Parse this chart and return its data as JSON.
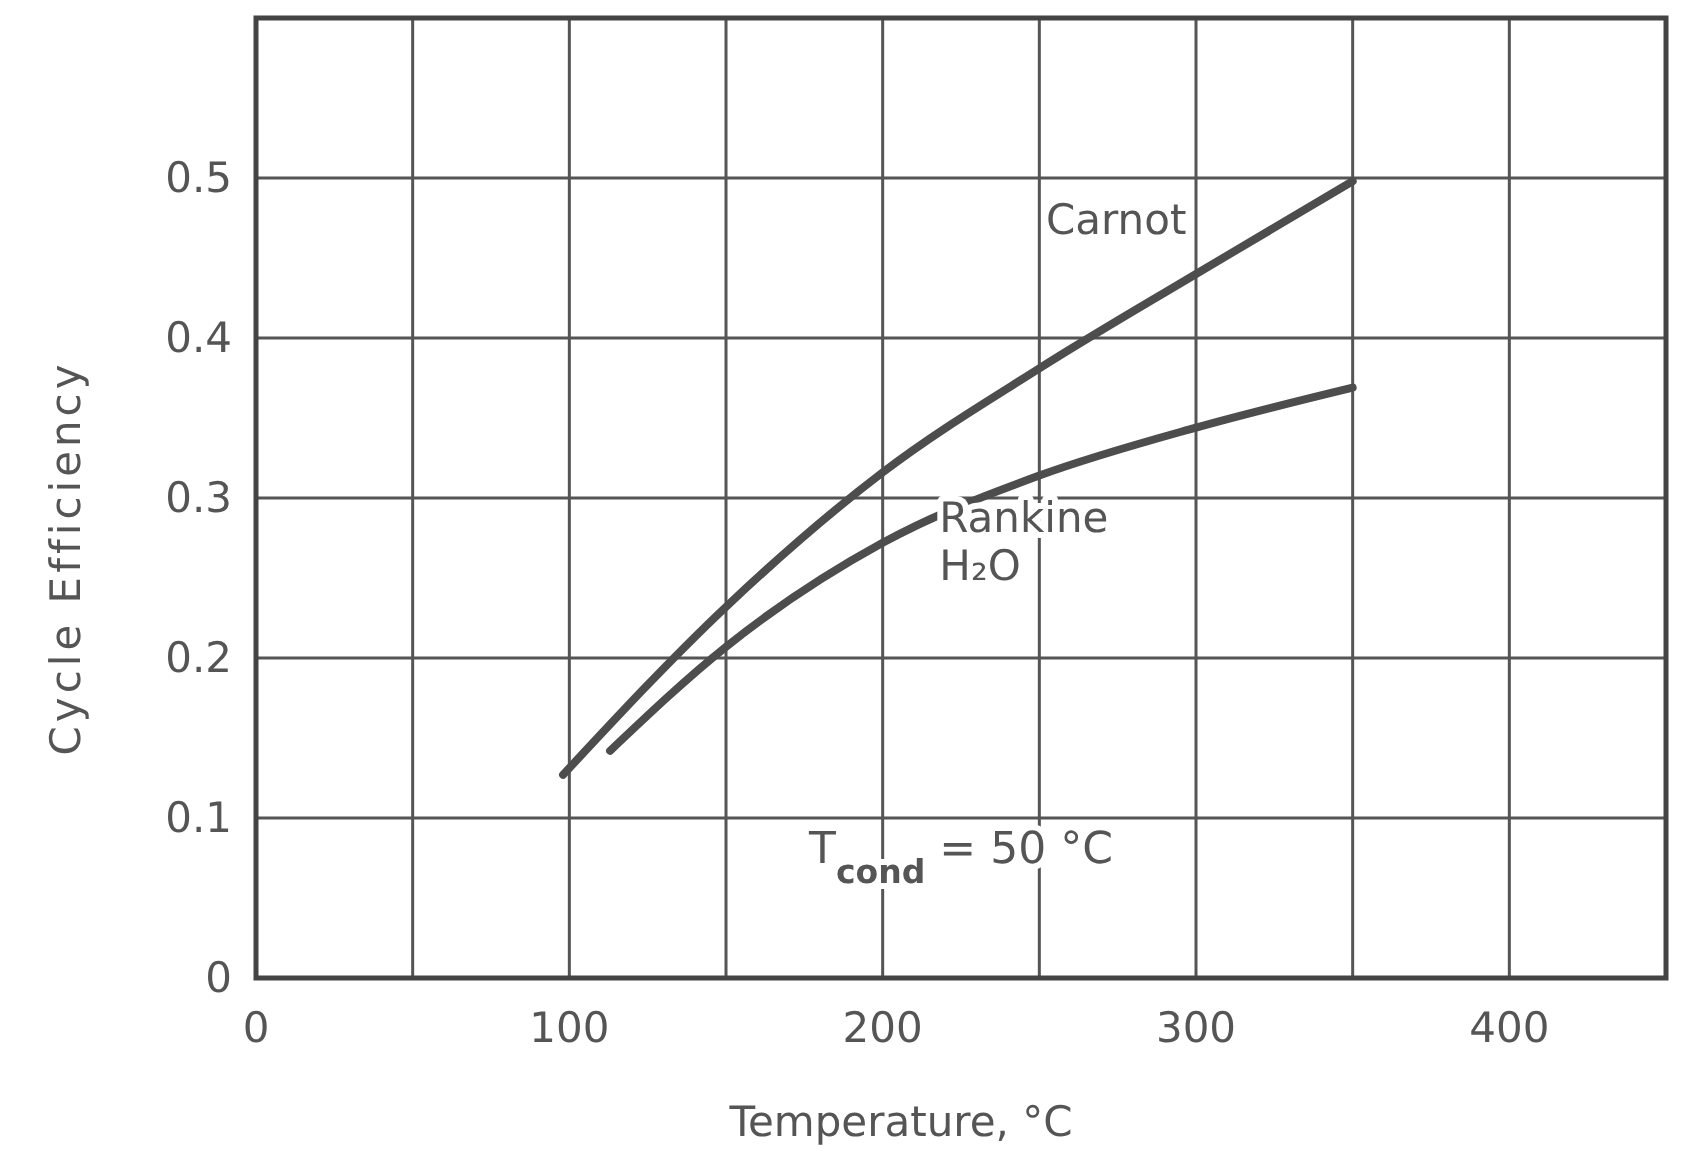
{
  "chart_data": {
    "type": "line",
    "xlabel": "Temperature, °C",
    "ylabel": "Cycle Efficiency",
    "xlim": [
      0,
      450
    ],
    "ylim": [
      0,
      0.6
    ],
    "xticks": [
      0,
      {
        "value": 50,
        "label": null
      },
      100,
      {
        "value": 150,
        "label": null
      },
      200,
      {
        "value": 250,
        "label": null
      },
      300,
      {
        "value": 350,
        "label": null
      },
      400,
      {
        "value": 450,
        "label": null
      }
    ],
    "yticks": [
      0,
      0.1,
      0.2,
      0.3,
      0.4,
      0.5
    ],
    "grid": true,
    "marker": "none",
    "line_style": "solid",
    "series": [
      {
        "name": "Carnot",
        "color": "#4d4d4d",
        "x": [
          98,
          150,
          200,
          250,
          300,
          350
        ],
        "values": [
          0.127,
          0.232,
          0.316,
          0.381,
          0.44,
          0.498
        ]
      },
      {
        "name": "Rankine H₂O",
        "color": "#4d4d4d",
        "x": [
          113,
          150,
          200,
          250,
          300,
          350
        ],
        "values": [
          0.142,
          0.207,
          0.272,
          0.314,
          0.344,
          0.369
        ]
      }
    ],
    "annotations": [
      "T$_{cond}$ = 50 °C"
    ]
  }
}
